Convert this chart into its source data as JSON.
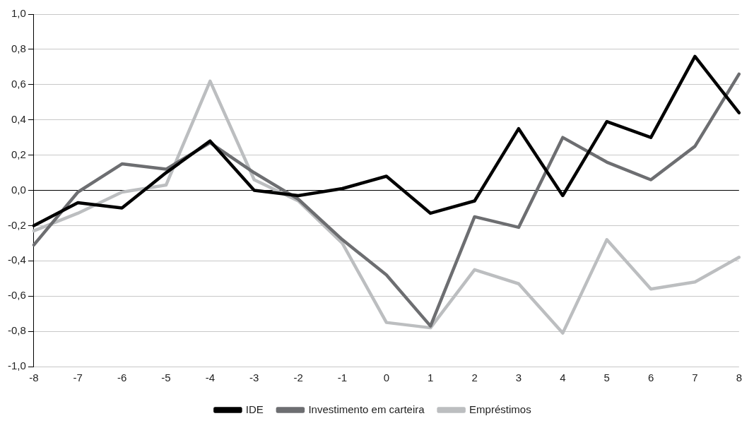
{
  "chart_data": {
    "type": "line",
    "categories": [
      "-8",
      "-7",
      "-6",
      "-5",
      "-4",
      "-3",
      "-2",
      "-1",
      "0",
      "1",
      "2",
      "3",
      "4",
      "5",
      "6",
      "7",
      "8"
    ],
    "series": [
      {
        "name": "IDE",
        "color": "#000000",
        "values": [
          -0.2,
          -0.07,
          -0.1,
          0.1,
          0.28,
          0.0,
          -0.03,
          0.01,
          0.08,
          -0.13,
          -0.06,
          0.35,
          -0.03,
          0.39,
          0.3,
          0.76,
          0.44
        ]
      },
      {
        "name": "Investimento em carteira",
        "color": "#6d6e71",
        "values": [
          -0.31,
          -0.01,
          0.15,
          0.12,
          0.27,
          0.1,
          -0.05,
          -0.28,
          -0.48,
          -0.77,
          -0.15,
          -0.21,
          0.3,
          0.16,
          0.06,
          0.25,
          0.66
        ]
      },
      {
        "name": "Empréstimos",
        "color": "#bcbec0",
        "values": [
          -0.23,
          -0.13,
          -0.01,
          0.03,
          0.62,
          0.06,
          -0.06,
          -0.3,
          -0.75,
          -0.78,
          -0.45,
          -0.53,
          -0.81,
          -0.28,
          -0.56,
          -0.52,
          -0.38
        ]
      }
    ],
    "ylim": [
      -1,
      1
    ],
    "yticks": [
      {
        "value": -1,
        "label": "-1,0"
      },
      {
        "value": -0.8,
        "label": "-0,8"
      },
      {
        "value": -0.6,
        "label": "-0,6"
      },
      {
        "value": -0.4,
        "label": "-0,4"
      },
      {
        "value": -0.2,
        "label": "-0,2"
      },
      {
        "value": 0,
        "label": "0,0"
      },
      {
        "value": 0.2,
        "label": "0,2"
      },
      {
        "value": 0.4,
        "label": "0,4"
      },
      {
        "value": 0.6,
        "label": "0,6"
      },
      {
        "value": 0.8,
        "label": "0,8"
      },
      {
        "value": 1,
        "label": "1,0"
      }
    ],
    "grid": "y",
    "legend": "bottom",
    "marker": "none",
    "line_style": "solid"
  }
}
